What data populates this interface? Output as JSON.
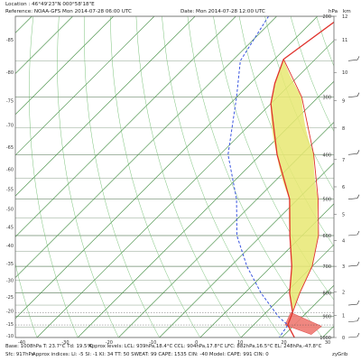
{
  "header": {
    "location": "Location : 46°49'23\"N 000°58'18\"E",
    "reference": "Reference: NOAA-GFS Mon 2014-07-28 06:00 UTC",
    "date": "Date: Mon 2014-07-28 12:00 UTC",
    "units_hpa": "hPa",
    "units_km": "km"
  },
  "footer": {
    "line1_base": "Base: 1008hPa  T: 23.7°C  Td: 19.5°C",
    "line1_levels": "Approx levels:  LCL: 939hPa,18.4°C   CCL: 904hPa,17.8°C   LFC: 882hPa,16.5°C   EL: 248hPa,-47.8°C",
    "line2_sfc": "Sfc: 917hPa",
    "line2_indices": "Approx indices:  LI: -5   SI: -1   KI: 34   TT: 50   SWEAT: 99    CAPE: 1535  CIN: -40    Model: CAPE: 991 CIN: 0",
    "credit": "zyGrib"
  },
  "chart_data": {
    "type": "line",
    "title": "",
    "xlabel": "",
    "ylabel": "",
    "ylim_hpa": [
      200,
      1000
    ],
    "xlim_c": [
      -40,
      30
    ],
    "left_ticks": [
      {
        "label": "-85",
        "p": 225
      },
      {
        "label": "-80",
        "p": 265
      },
      {
        "label": "-75",
        "p": 305
      },
      {
        "label": "-70",
        "p": 345
      },
      {
        "label": "-65",
        "p": 385
      },
      {
        "label": "-60",
        "p": 430
      },
      {
        "label": "-55",
        "p": 475
      },
      {
        "label": "-50",
        "p": 525
      },
      {
        "label": "-45",
        "p": 575
      },
      {
        "label": "-40",
        "p": 630
      },
      {
        "label": "-35",
        "p": 690
      },
      {
        "label": "-30",
        "p": 750
      },
      {
        "label": "-25",
        "p": 815
      },
      {
        "label": "-20",
        "p": 875
      },
      {
        "label": "-15",
        "p": 935
      },
      {
        "label": "-10",
        "p": 990
      }
    ],
    "pressure_ticks": [
      {
        "label": "200",
        "p": 200
      },
      {
        "label": "300",
        "p": 300
      },
      {
        "label": "400",
        "p": 400
      },
      {
        "label": "500",
        "p": 500
      },
      {
        "label": "600",
        "p": 600
      },
      {
        "label": "700",
        "p": 700
      },
      {
        "label": "800",
        "p": 800
      },
      {
        "label": "900",
        "p": 900
      },
      {
        "label": "1000",
        "p": 1000
      }
    ],
    "km_ticks": [
      {
        "label": "12",
        "p": 200
      },
      {
        "label": "11",
        "p": 225
      },
      {
        "label": "10",
        "p": 265
      },
      {
        "label": "9",
        "p": 305
      },
      {
        "label": "8",
        "p": 350
      },
      {
        "label": "7",
        "p": 410
      },
      {
        "label": "6",
        "p": 470
      },
      {
        "label": "5",
        "p": 540
      },
      {
        "label": "4",
        "p": 615
      },
      {
        "label": "3",
        "p": 700
      },
      {
        "label": "2",
        "p": 795
      },
      {
        "label": "1",
        "p": 895
      },
      {
        "label": "0",
        "p": 1000
      }
    ],
    "x_ticks": [
      "-40",
      "-30",
      "-20",
      "-10",
      "0",
      "10",
      "20",
      "30"
    ],
    "series": [
      {
        "color": "#e0312b",
        "points": [
          {
            "p": 200,
            "t": -44
          },
          {
            "p": 248,
            "t": -47.8
          },
          {
            "p": 280,
            "t": -44
          },
          {
            "p": 310,
            "t": -40
          },
          {
            "p": 400,
            "t": -26
          },
          {
            "p": 500,
            "t": -12
          },
          {
            "p": 600,
            "t": -3
          },
          {
            "p": 700,
            "t": 5
          },
          {
            "p": 800,
            "t": 11
          },
          {
            "p": 882,
            "t": 16.5
          },
          {
            "p": 939,
            "t": 18.4
          },
          {
            "p": 1008,
            "t": 23.7
          }
        ]
      },
      {
        "color": "#3a55e0",
        "points": [
          {
            "p": 200,
            "t": -62
          },
          {
            "p": 250,
            "t": -58
          },
          {
            "p": 300,
            "t": -50
          },
          {
            "p": 400,
            "t": -38
          },
          {
            "p": 500,
            "t": -25
          },
          {
            "p": 600,
            "t": -16
          },
          {
            "p": 700,
            "t": -6
          },
          {
            "p": 800,
            "t": 4
          },
          {
            "p": 900,
            "t": 14
          },
          {
            "p": 939,
            "t": 18.4
          },
          {
            "p": 1008,
            "t": 19.5
          }
        ]
      },
      {
        "color": "#e0312b",
        "points": [
          {
            "p": 248,
            "t": -47.8
          },
          {
            "p": 300,
            "t": -34
          },
          {
            "p": 400,
            "t": -17
          },
          {
            "p": 500,
            "t": -5
          },
          {
            "p": 600,
            "t": 4
          },
          {
            "p": 700,
            "t": 10
          },
          {
            "p": 800,
            "t": 13.5
          },
          {
            "p": 882,
            "t": 16.5
          },
          {
            "p": 939,
            "t": 18.4
          },
          {
            "p": 1008,
            "t": 23.7
          }
        ]
      }
    ],
    "cape_fill_color": "#e8e872",
    "cin_fill_color": "#ee7a72",
    "lfc_hpa": 882,
    "lcl_hpa": 939,
    "el_hpa": 248,
    "base_hpa": 1008,
    "wind_barbs_hpa": [
      250,
      300,
      400,
      500,
      600,
      700,
      850,
      925,
      1000
    ],
    "colors": {
      "isotherm": "#3d8a3d",
      "dry_adiabat": "#6bbb6b",
      "isobar": "#6e8a6e",
      "temp": "#e0312b",
      "dewpoint": "#3a55e0"
    }
  }
}
